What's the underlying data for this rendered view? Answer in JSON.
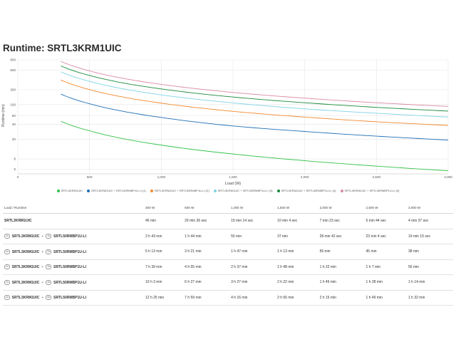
{
  "page_title": "Runtime: SRTL3KRM1UIC",
  "chart_data": {
    "type": "line",
    "title": "Runtime: SRTL3KRM1UIC",
    "xlabel": "Load (W)",
    "ylabel": "Runtime (min)",
    "x_scale": "linear",
    "y_scale": "log",
    "xlim": [
      0,
      3000
    ],
    "ylim": [
      4,
      800
    ],
    "x_ticks": [
      0,
      500,
      1000,
      1500,
      2000,
      2500,
      3000
    ],
    "x_tick_labels": [
      "0",
      "500",
      "1,000",
      "1,500",
      "2,000",
      "2,500",
      "3,000"
    ],
    "y_ticks": [
      5,
      8,
      20,
      40,
      60,
      100,
      200,
      500,
      800
    ],
    "y_tick_labels": [
      "5",
      "8",
      "20",
      "40",
      "60",
      "100",
      "200",
      "500",
      "800"
    ],
    "grid": true,
    "legend_position": "bottom",
    "x": [
      300,
      500,
      1000,
      1500,
      2000,
      2500,
      3000
    ],
    "series": [
      {
        "name": "SRTL3KRM1UIC",
        "color": "#35c24a",
        "values": [
          46,
          29.6,
          15.23,
          10.07,
          7.38,
          5.73,
          4.62
        ]
      },
      {
        "name": "SRTL3KRM1UIC + SRTL50RMBP1U-LI (1)",
        "color": "#1f6fb4",
        "values": [
          163,
          104,
          55,
          37,
          28.7,
          23.07,
          19.25
        ]
      },
      {
        "name": "SRTL3KRM1UIC + SRTL50RMBP1U-LI (2)",
        "color": "#f28a2e",
        "values": [
          313,
          201,
          107,
          73,
          56,
          45,
          38
        ]
      },
      {
        "name": "SRTL3KRM1UIC + SRTL50RMBP1U-LI (3)",
        "color": "#7fd3e6",
        "values": [
          459,
          295,
          157,
          108,
          82,
          67,
          56
        ]
      },
      {
        "name": "SRTL3KRM1UIC + SRTL50RMBP1U-LI (4)",
        "color": "#1a8a3a",
        "values": [
          603,
          387,
          207,
          142,
          109,
          88,
          74
        ]
      },
      {
        "name": "SRTL3KRM1UIC + SRTL50RMBP1U-LI (5)",
        "color": "#d98ba0",
        "values": [
          745,
          479,
          256,
          176,
          135,
          109,
          92
        ]
      }
    ]
  },
  "table": {
    "header_label": "Load / Runtime",
    "columns": [
      "300 W",
      "500 W",
      "1,000 W",
      "1,500 W",
      "2,000 W",
      "2,500 W",
      "3,000 W"
    ],
    "rows": [
      {
        "model": "SRTL3KRM1UIC",
        "ups_qty": "",
        "battery": "",
        "battery_qty": "",
        "values": [
          "46 min",
          "29 min 36 sec",
          "15 min 14 sec",
          "10 min 4 sec",
          "7 min 23 sec",
          "5 min 44 sec",
          "4 min 37 sec"
        ]
      },
      {
        "model": "SRTL3KRM1UIC",
        "ups_qty": "1x",
        "battery": "SRTL50RMBP1U-LI",
        "battery_qty": "1x",
        "values": [
          "2 h 43 min",
          "1 h 44 min",
          "55 min",
          "37 min",
          "28 min 42 sec",
          "23 min 4 sec",
          "19 min 15 sec"
        ]
      },
      {
        "model": "SRTL3KRM1UIC",
        "ups_qty": "1x",
        "battery": "SRTL50RMBP1U-LI",
        "battery_qty": "2x",
        "values": [
          "5 h 13 min",
          "3 h 21 min",
          "1 h 47 min",
          "1 h 13 min",
          "56 min",
          "45 min",
          "38 min"
        ]
      },
      {
        "model": "SRTL3KRM1UIC",
        "ups_qty": "1x",
        "battery": "SRTL50RMBP1U-LI",
        "battery_qty": "3x",
        "values": [
          "7 h 39 min",
          "4 h 55 min",
          "2 h 37 min",
          "1 h 48 min",
          "1 h 22 min",
          "1 h 7 min",
          "56 min"
        ]
      },
      {
        "model": "SRTL3KRM1UIC",
        "ups_qty": "1x",
        "battery": "SRTL50RMBP1U-LI",
        "battery_qty": "4x",
        "values": [
          "10 h 3 min",
          "6 h 27 min",
          "3 h 27 min",
          "2 h 22 min",
          "1 h 49 min",
          "1 h 28 min",
          "1 h 14 min"
        ]
      },
      {
        "model": "SRTL3KRM1UIC",
        "ups_qty": "1x",
        "battery": "SRTL50RMBP1U-LI",
        "battery_qty": "5x",
        "values": [
          "12 h 25 min",
          "7 h 59 min",
          "4 h 16 min",
          "2 h 56 min",
          "2 h 15 min",
          "1 h 49 min",
          "1 h 32 min"
        ]
      }
    ]
  }
}
